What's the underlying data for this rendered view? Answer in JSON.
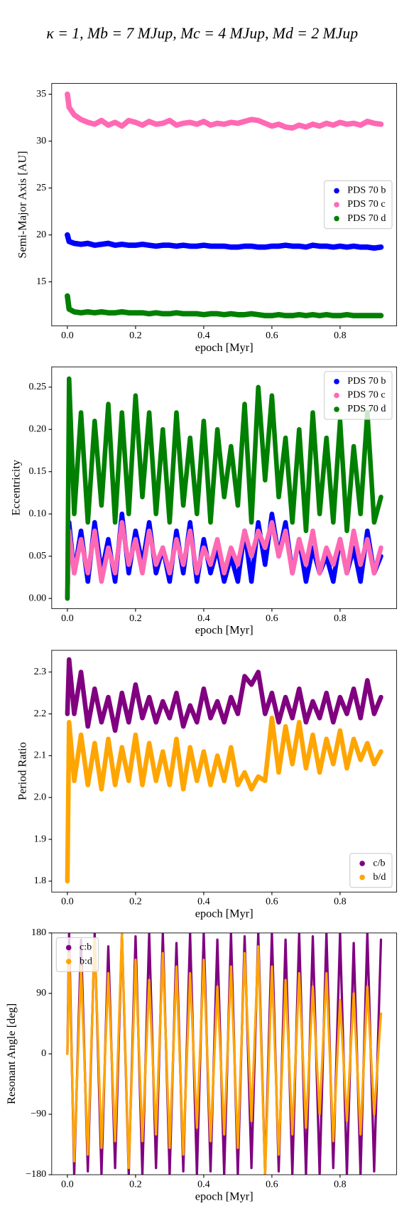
{
  "title": "κ = 1, Mb = 7 MJup, Mc = 4 MJup, Md = 2 MJup",
  "chart_data": [
    {
      "type": "line",
      "xlabel": "epoch [Myr]",
      "ylabel": "Semi-Major Axis [AU]",
      "legend": "center right",
      "xlim": [
        -0.046,
        0.966
      ],
      "ylim": [
        10.3,
        36.15
      ],
      "xticks": [
        {
          "value": 0,
          "label": "0.0"
        },
        0.2,
        0.4,
        0.6,
        0.8
      ],
      "yticks": [
        15,
        20,
        25,
        30,
        35
      ],
      "x": [
        0,
        0.005,
        0.02,
        0.04,
        0.06,
        0.08,
        0.1,
        0.12,
        0.14,
        0.16,
        0.18,
        0.2,
        0.22,
        0.24,
        0.26,
        0.28,
        0.3,
        0.32,
        0.34,
        0.36,
        0.38,
        0.4,
        0.42,
        0.44,
        0.46,
        0.48,
        0.5,
        0.52,
        0.54,
        0.56,
        0.58,
        0.6,
        0.62,
        0.64,
        0.66,
        0.68,
        0.7,
        0.72,
        0.74,
        0.76,
        0.78,
        0.8,
        0.82,
        0.84,
        0.86,
        0.88,
        0.9,
        0.92
      ],
      "series": [
        {
          "name": "PDS 70 b",
          "color": "#0000ff",
          "values": [
            20,
            19.3,
            19.1,
            19.0,
            19.1,
            18.9,
            19.0,
            19.1,
            18.9,
            19.0,
            18.9,
            18.9,
            19.0,
            18.9,
            18.8,
            18.9,
            18.9,
            18.8,
            18.9,
            18.8,
            18.8,
            18.9,
            18.8,
            18.8,
            18.8,
            18.7,
            18.7,
            18.8,
            18.8,
            18.7,
            18.7,
            18.8,
            18.8,
            18.9,
            18.8,
            18.8,
            18.7,
            18.9,
            18.8,
            18.8,
            18.7,
            18.8,
            18.7,
            18.8,
            18.7,
            18.7,
            18.6,
            18.7
          ]
        },
        {
          "name": "PDS 70 c",
          "color": "#ff69b4",
          "values": [
            35,
            33.6,
            32.8,
            32.3,
            32.0,
            31.8,
            32.2,
            31.7,
            32.0,
            31.6,
            32.2,
            32.0,
            31.7,
            32.1,
            31.8,
            31.9,
            32.2,
            31.7,
            31.9,
            32.0,
            31.8,
            32.1,
            31.7,
            31.9,
            31.8,
            32.0,
            31.9,
            32.1,
            32.3,
            32.2,
            31.9,
            31.6,
            31.8,
            31.5,
            31.4,
            31.7,
            31.5,
            31.8,
            31.6,
            31.9,
            31.7,
            32.0,
            31.8,
            31.9,
            31.7,
            32.1,
            31.9,
            31.8
          ]
        },
        {
          "name": "PDS 70 d",
          "color": "#008000",
          "values": [
            13.5,
            12.1,
            11.8,
            11.7,
            11.8,
            11.7,
            11.8,
            11.7,
            11.7,
            11.8,
            11.7,
            11.7,
            11.7,
            11.6,
            11.7,
            11.6,
            11.6,
            11.7,
            11.6,
            11.6,
            11.6,
            11.5,
            11.6,
            11.6,
            11.5,
            11.6,
            11.5,
            11.5,
            11.6,
            11.5,
            11.4,
            11.4,
            11.5,
            11.4,
            11.4,
            11.5,
            11.4,
            11.5,
            11.4,
            11.5,
            11.4,
            11.4,
            11.5,
            11.4,
            11.4,
            11.4,
            11.4,
            11.4
          ]
        }
      ]
    },
    {
      "type": "line",
      "xlabel": "epoch [Myr]",
      "ylabel": "Eccentricity",
      "legend": "upper right",
      "xlim": [
        -0.046,
        0.966
      ],
      "ylim": [
        -0.012,
        0.274
      ],
      "xticks": [
        {
          "value": 0,
          "label": "0.0"
        },
        0.2,
        0.4,
        0.6,
        0.8
      ],
      "yticks": [
        {
          "value": 0,
          "label": "0.00"
        },
        0.05,
        {
          "value": 0.1,
          "label": "0.10"
        },
        0.15,
        {
          "value": 0.2,
          "label": "0.20"
        },
        0.25
      ],
      "x": [
        0,
        0.005,
        0.02,
        0.04,
        0.06,
        0.08,
        0.1,
        0.12,
        0.14,
        0.16,
        0.18,
        0.2,
        0.22,
        0.24,
        0.26,
        0.28,
        0.3,
        0.32,
        0.34,
        0.36,
        0.38,
        0.4,
        0.42,
        0.44,
        0.46,
        0.48,
        0.5,
        0.52,
        0.54,
        0.56,
        0.58,
        0.6,
        0.62,
        0.64,
        0.66,
        0.68,
        0.7,
        0.72,
        0.74,
        0.76,
        0.78,
        0.8,
        0.82,
        0.84,
        0.86,
        0.88,
        0.9,
        0.92
      ],
      "series": [
        {
          "name": "PDS 70 b",
          "color": "#0000ff",
          "values": [
            0.0,
            0.09,
            0.03,
            0.08,
            0.02,
            0.09,
            0.03,
            0.07,
            0.02,
            0.1,
            0.03,
            0.08,
            0.04,
            0.09,
            0.03,
            0.06,
            0.02,
            0.08,
            0.03,
            0.09,
            0.02,
            0.07,
            0.03,
            0.06,
            0.02,
            0.05,
            0.02,
            0.08,
            0.02,
            0.09,
            0.04,
            0.1,
            0.05,
            0.09,
            0.03,
            0.07,
            0.02,
            0.06,
            0.03,
            0.05,
            0.02,
            0.07,
            0.03,
            0.06,
            0.02,
            0.08,
            0.03,
            0.05
          ]
        },
        {
          "name": "PDS 70 c",
          "color": "#ff69b4",
          "values": [
            0.0,
            0.08,
            0.03,
            0.07,
            0.03,
            0.08,
            0.02,
            0.06,
            0.03,
            0.09,
            0.04,
            0.07,
            0.03,
            0.08,
            0.04,
            0.06,
            0.03,
            0.07,
            0.04,
            0.08,
            0.03,
            0.06,
            0.04,
            0.07,
            0.03,
            0.06,
            0.04,
            0.08,
            0.05,
            0.08,
            0.06,
            0.09,
            0.05,
            0.08,
            0.03,
            0.07,
            0.04,
            0.08,
            0.03,
            0.06,
            0.04,
            0.07,
            0.03,
            0.08,
            0.04,
            0.07,
            0.03,
            0.06
          ]
        },
        {
          "name": "PDS 70 d",
          "color": "#008000",
          "values": [
            0.0,
            0.26,
            0.1,
            0.22,
            0.09,
            0.21,
            0.11,
            0.23,
            0.09,
            0.22,
            0.1,
            0.24,
            0.12,
            0.22,
            0.1,
            0.2,
            0.09,
            0.22,
            0.11,
            0.19,
            0.1,
            0.21,
            0.09,
            0.2,
            0.12,
            0.18,
            0.11,
            0.23,
            0.09,
            0.25,
            0.14,
            0.24,
            0.12,
            0.19,
            0.09,
            0.2,
            0.08,
            0.22,
            0.1,
            0.19,
            0.09,
            0.21,
            0.08,
            0.18,
            0.1,
            0.22,
            0.09,
            0.12
          ]
        }
      ]
    },
    {
      "type": "line",
      "xlabel": "epoch [Myr]",
      "ylabel": "Period Ratio",
      "legend": "lower right",
      "xlim": [
        -0.046,
        0.966
      ],
      "ylim": [
        1.774,
        2.352
      ],
      "xticks": [
        {
          "value": 0,
          "label": "0.0"
        },
        0.2,
        0.4,
        0.6,
        0.8
      ],
      "yticks": [
        1.8,
        1.9,
        {
          "value": 2,
          "label": "2.0"
        },
        2.1,
        2.2,
        2.3
      ],
      "x": [
        0,
        0.005,
        0.02,
        0.04,
        0.06,
        0.08,
        0.1,
        0.12,
        0.14,
        0.16,
        0.18,
        0.2,
        0.22,
        0.24,
        0.26,
        0.28,
        0.3,
        0.32,
        0.34,
        0.36,
        0.38,
        0.4,
        0.42,
        0.44,
        0.46,
        0.48,
        0.5,
        0.52,
        0.54,
        0.56,
        0.58,
        0.6,
        0.62,
        0.64,
        0.66,
        0.68,
        0.7,
        0.72,
        0.74,
        0.76,
        0.78,
        0.8,
        0.82,
        0.84,
        0.86,
        0.88,
        0.9,
        0.92
      ],
      "series": [
        {
          "name": "c/b",
          "color": "#800080",
          "values": [
            2.2,
            2.33,
            2.2,
            2.3,
            2.17,
            2.26,
            2.18,
            2.24,
            2.16,
            2.25,
            2.18,
            2.27,
            2.19,
            2.24,
            2.18,
            2.23,
            2.19,
            2.25,
            2.17,
            2.22,
            2.18,
            2.26,
            2.19,
            2.23,
            2.18,
            2.24,
            2.2,
            2.29,
            2.27,
            2.3,
            2.2,
            2.25,
            2.18,
            2.24,
            2.19,
            2.26,
            2.18,
            2.23,
            2.19,
            2.25,
            2.18,
            2.24,
            2.2,
            2.26,
            2.19,
            2.28,
            2.2,
            2.24
          ]
        },
        {
          "name": "b/d",
          "color": "#ffa500",
          "values": [
            1.8,
            2.18,
            2.04,
            2.15,
            2.03,
            2.13,
            2.02,
            2.14,
            2.03,
            2.12,
            2.04,
            2.15,
            2.03,
            2.13,
            2.04,
            2.11,
            2.03,
            2.14,
            2.02,
            2.12,
            2.04,
            2.11,
            2.03,
            2.1,
            2.04,
            2.12,
            2.03,
            2.06,
            2.02,
            2.05,
            2.04,
            2.19,
            2.06,
            2.17,
            2.08,
            2.18,
            2.07,
            2.15,
            2.06,
            2.14,
            2.08,
            2.16,
            2.07,
            2.14,
            2.09,
            2.13,
            2.08,
            2.11
          ]
        }
      ]
    },
    {
      "type": "line",
      "xlabel": "epoch [Myr]",
      "ylabel": "Resonant Angle [deg]",
      "legend": "upper left",
      "xlim": [
        -0.046,
        0.966
      ],
      "ylim": [
        -180,
        180
      ],
      "xticks": [
        {
          "value": 0,
          "label": "0.0"
        },
        0.2,
        0.4,
        0.6,
        0.8
      ],
      "yticks": [
        {
          "value": -180,
          "label": "−180"
        },
        {
          "value": -90,
          "label": "−90"
        },
        0,
        90,
        180
      ],
      "x": [
        0,
        0.005,
        0.02,
        0.04,
        0.06,
        0.08,
        0.1,
        0.12,
        0.14,
        0.16,
        0.18,
        0.2,
        0.22,
        0.24,
        0.26,
        0.28,
        0.3,
        0.32,
        0.34,
        0.36,
        0.38,
        0.4,
        0.42,
        0.44,
        0.46,
        0.48,
        0.5,
        0.52,
        0.54,
        0.56,
        0.58,
        0.6,
        0.62,
        0.64,
        0.66,
        0.68,
        0.7,
        0.72,
        0.74,
        0.76,
        0.78,
        0.8,
        0.82,
        0.84,
        0.86,
        0.88,
        0.9,
        0.92
      ],
      "series": [
        {
          "name": "c:b",
          "color": "#800080",
          "values": [
            0,
            180,
            -180,
            170,
            -175,
            180,
            -180,
            160,
            -170,
            180,
            -180,
            175,
            -180,
            180,
            -170,
            180,
            -180,
            165,
            -175,
            180,
            -180,
            180,
            -175,
            170,
            -180,
            180,
            -180,
            175,
            -170,
            180,
            -180,
            180,
            -175,
            170,
            -180,
            180,
            -180,
            175,
            -180,
            180,
            -170,
            180,
            -180,
            165,
            -180,
            180,
            -175,
            170
          ]
        },
        {
          "name": "b:d",
          "color": "#ffa500",
          "values": [
            0,
            150,
            -160,
            130,
            -150,
            170,
            -140,
            120,
            -130,
            180,
            -170,
            140,
            -130,
            110,
            -120,
            150,
            -140,
            130,
            -150,
            120,
            -110,
            140,
            -130,
            100,
            -120,
            130,
            -140,
            150,
            -100,
            160,
            -180,
            130,
            -150,
            110,
            -120,
            120,
            -110,
            100,
            -90,
            120,
            -130,
            80,
            -100,
            90,
            -120,
            100,
            -90,
            60
          ]
        }
      ]
    }
  ]
}
